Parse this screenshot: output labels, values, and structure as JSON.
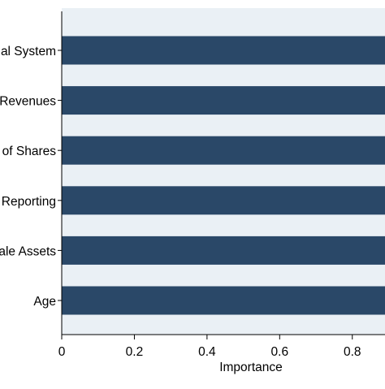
{
  "chart_data": {
    "type": "bar",
    "orientation": "horizontal",
    "categories": [
      "al System",
      "Revenues",
      "of Shares",
      "Reporting",
      "ale Assets",
      "Age"
    ],
    "values": [
      0.95,
      0.95,
      0.95,
      0.95,
      0.95,
      0.95
    ],
    "xlabel": "Importance",
    "xticks": [
      "0",
      "0.2",
      "0.4",
      "0.6",
      "0.8"
    ],
    "xlim": [
      0,
      0.89
    ],
    "grid": false,
    "colors": {
      "bar": "#2a4868",
      "plot_background": "#eaf0f5",
      "page_background": "#ffffff"
    }
  }
}
